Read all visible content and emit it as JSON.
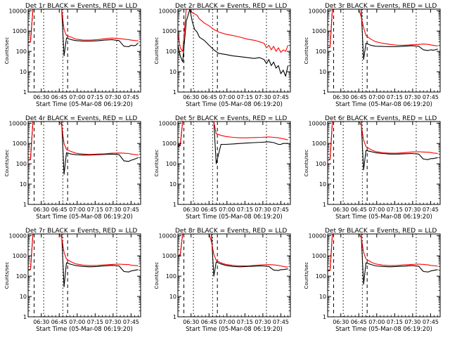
{
  "shared": {
    "ylabel": "Counts/sec",
    "xlabel": "Start Time (05-Mar-08 06:19:20)",
    "xticks": [
      "06:30",
      "06:45",
      "07:00",
      "07:15",
      "07:30",
      "07:45"
    ],
    "yticks": [
      "1",
      "10",
      "100",
      "1000",
      "10000"
    ],
    "ylim": [
      1,
      12000
    ],
    "xlim_minutes_after_0619": [
      0,
      94
    ],
    "scale": "log",
    "grid": "off",
    "events_color": "#000000",
    "lld_color": "#ff0000"
  },
  "chart_data": [
    {
      "type": "line",
      "title": "Det 1r BLACK = Events, RED = LLD",
      "x": [
        0,
        2,
        4,
        7,
        10,
        14,
        18,
        22,
        26,
        28,
        30,
        32,
        36,
        40,
        46,
        52,
        58,
        64,
        70,
        76,
        80,
        84,
        86,
        88,
        90,
        92
      ],
      "series": [
        {
          "name": "BLACK = Events",
          "values": [
            280,
            290,
            12000,
            12000,
            12000,
            12000,
            12000,
            12000,
            12000,
            12000,
            60,
            450,
            380,
            340,
            320,
            320,
            330,
            360,
            380,
            340,
            180,
            170,
            200,
            190,
            200,
            260
          ]
        },
        {
          "name": "RED = LLD",
          "values": [
            280,
            300,
            12000,
            12000,
            12000,
            12000,
            12000,
            12000,
            12000,
            12000,
            1200,
            600,
            500,
            400,
            360,
            360,
            380,
            420,
            450,
            430,
            400,
            380,
            360,
            350,
            340,
            330
          ]
        }
      ]
    },
    {
      "type": "line",
      "title": "Det 2r BLACK = Events, RED = LLD",
      "x": [
        0,
        2,
        4,
        7,
        10,
        12,
        14,
        16,
        18,
        22,
        26,
        30,
        34,
        40,
        46,
        52,
        58,
        64,
        68,
        72,
        74,
        76,
        78,
        80,
        82,
        84,
        86,
        88,
        90,
        92
      ],
      "series": [
        {
          "name": "BLACK = Events",
          "values": [
            200,
            60,
            30,
            3000,
            12000,
            3000,
            1200,
            900,
            500,
            350,
            200,
            120,
            80,
            70,
            60,
            55,
            50,
            45,
            50,
            40,
            25,
            40,
            20,
            30,
            15,
            20,
            8,
            12,
            6,
            20
          ]
        },
        {
          "name": "RED = LLD",
          "values": [
            800,
            150,
            100,
            12000,
            12000,
            8000,
            7000,
            6000,
            4000,
            2500,
            1800,
            1200,
            900,
            700,
            600,
            500,
            400,
            350,
            300,
            250,
            150,
            200,
            120,
            180,
            100,
            150,
            90,
            120,
            100,
            200
          ]
        }
      ]
    },
    {
      "type": "line",
      "title": "Det 3r BLACK = Events, RED = LLD",
      "x": [
        0,
        2,
        4,
        7,
        10,
        14,
        18,
        22,
        26,
        28,
        30,
        32,
        36,
        40,
        46,
        52,
        58,
        64,
        70,
        76,
        80,
        84,
        86,
        88,
        90,
        92
      ],
      "series": [
        {
          "name": "BLACK = Events",
          "values": [
            150,
            160,
            12000,
            12000,
            12000,
            12000,
            12000,
            12000,
            12000,
            12000,
            40,
            250,
            200,
            180,
            175,
            170,
            170,
            180,
            190,
            180,
            120,
            110,
            120,
            115,
            120,
            130
          ]
        },
        {
          "name": "RED = LLD",
          "values": [
            150,
            170,
            12000,
            12000,
            12000,
            12000,
            12000,
            12000,
            12000,
            5000,
            1500,
            600,
            400,
            300,
            250,
            220,
            200,
            200,
            210,
            220,
            230,
            220,
            210,
            200,
            190,
            185
          ]
        }
      ]
    },
    {
      "type": "line",
      "title": "Det 4r BLACK = Events, RED = LLD",
      "x": [
        0,
        2,
        4,
        7,
        10,
        14,
        18,
        22,
        26,
        28,
        30,
        32,
        36,
        40,
        46,
        52,
        58,
        64,
        70,
        76,
        80,
        84,
        86,
        88,
        90,
        92
      ],
      "series": [
        {
          "name": "BLACK = Events",
          "values": [
            150,
            160,
            12000,
            12000,
            12000,
            12000,
            12000,
            12000,
            12000,
            12000,
            30,
            350,
            300,
            280,
            270,
            270,
            280,
            290,
            300,
            280,
            140,
            130,
            150,
            160,
            180,
            200
          ]
        },
        {
          "name": "RED = LLD",
          "values": [
            150,
            170,
            12000,
            12000,
            12000,
            12000,
            12000,
            12000,
            12000,
            8000,
            1000,
            500,
            400,
            330,
            300,
            290,
            300,
            310,
            330,
            340,
            330,
            320,
            300,
            290,
            280,
            270
          ]
        }
      ]
    },
    {
      "type": "line",
      "title": "Det 5r BLACK = Events, RED = LLD",
      "x": [
        0,
        2,
        4,
        7,
        10,
        14,
        18,
        22,
        26,
        30,
        32,
        36,
        40,
        46,
        52,
        58,
        64,
        70,
        76,
        80,
        84,
        86,
        88,
        90,
        92
      ],
      "series": [
        {
          "name": "BLACK = Events",
          "values": [
            700,
            800,
            12000,
            12000,
            12000,
            12000,
            12000,
            12000,
            12000,
            12000,
            100,
            900,
            900,
            950,
            1000,
            1050,
            1100,
            1150,
            1200,
            1100,
            900,
            900,
            1000,
            1000,
            1000
          ]
        },
        {
          "name": "RED = LLD",
          "values": [
            800,
            900,
            12000,
            12000,
            12000,
            12000,
            12000,
            12000,
            12000,
            12000,
            3000,
            2500,
            2200,
            2000,
            1900,
            1900,
            1950,
            2000,
            2100,
            2000,
            1900,
            1800,
            1700,
            1600,
            1500
          ]
        }
      ]
    },
    {
      "type": "line",
      "title": "Det 6r BLACK = Events, RED = LLD",
      "x": [
        0,
        2,
        4,
        7,
        10,
        14,
        18,
        22,
        26,
        28,
        30,
        32,
        36,
        40,
        46,
        52,
        58,
        64,
        70,
        76,
        80,
        84,
        86,
        88,
        90,
        92
      ],
      "series": [
        {
          "name": "BLACK = Events",
          "values": [
            150,
            160,
            12000,
            12000,
            12000,
            12000,
            12000,
            12000,
            12000,
            12000,
            50,
            450,
            400,
            350,
            320,
            300,
            300,
            310,
            320,
            300,
            170,
            160,
            180,
            180,
            190,
            200
          ]
        },
        {
          "name": "RED = LLD",
          "values": [
            150,
            170,
            12000,
            12000,
            12000,
            12000,
            12000,
            12000,
            12000,
            8000,
            1500,
            700,
            500,
            400,
            350,
            330,
            330,
            350,
            380,
            390,
            380,
            370,
            360,
            340,
            330,
            320
          ]
        }
      ]
    },
    {
      "type": "line",
      "title": "Det 7r BLACK = Events, RED = LLD",
      "x": [
        0,
        2,
        4,
        7,
        10,
        14,
        18,
        22,
        26,
        28,
        30,
        32,
        36,
        40,
        46,
        52,
        58,
        64,
        70,
        76,
        80,
        84,
        86,
        88,
        90,
        92
      ],
      "series": [
        {
          "name": "BLACK = Events",
          "values": [
            200,
            210,
            12000,
            12000,
            12000,
            12000,
            12000,
            12000,
            12000,
            12000,
            30,
            450,
            380,
            330,
            300,
            290,
            300,
            320,
            340,
            320,
            170,
            160,
            180,
            190,
            200,
            210
          ]
        },
        {
          "name": "RED = LLD",
          "values": [
            200,
            220,
            12000,
            12000,
            12000,
            12000,
            12000,
            12000,
            12000,
            8000,
            1500,
            700,
            500,
            400,
            350,
            330,
            340,
            360,
            380,
            390,
            380,
            370,
            350,
            340,
            330,
            320
          ]
        }
      ]
    },
    {
      "type": "line",
      "title": "Det 8r BLACK = Events, RED = LLD",
      "x": [
        0,
        2,
        4,
        7,
        10,
        14,
        18,
        22,
        26,
        28,
        30,
        32,
        36,
        40,
        46,
        52,
        58,
        64,
        70,
        76,
        80,
        84,
        86,
        88,
        90,
        92
      ],
      "series": [
        {
          "name": "BLACK = Events",
          "values": [
            1000,
            1100,
            12000,
            12000,
            12000,
            12000,
            12000,
            12000,
            12000,
            12000,
            100,
            500,
            400,
            340,
            300,
            290,
            300,
            310,
            320,
            300,
            200,
            190,
            210,
            210,
            220,
            230
          ]
        },
        {
          "name": "RED = LLD",
          "values": [
            1000,
            1200,
            12000,
            12000,
            12000,
            12000,
            12000,
            12000,
            12000,
            5000,
            1200,
            600,
            450,
            380,
            340,
            320,
            320,
            340,
            360,
            370,
            360,
            340,
            320,
            300,
            290,
            280
          ]
        }
      ]
    },
    {
      "type": "line",
      "title": "Det 9r BLACK = Events, RED = LLD",
      "x": [
        0,
        2,
        4,
        7,
        10,
        14,
        18,
        22,
        26,
        28,
        30,
        32,
        36,
        40,
        46,
        52,
        58,
        64,
        70,
        76,
        80,
        84,
        86,
        88,
        90,
        92
      ],
      "series": [
        {
          "name": "BLACK = Events",
          "values": [
            180,
            190,
            12000,
            12000,
            12000,
            12000,
            12000,
            12000,
            12000,
            12000,
            40,
            450,
            380,
            320,
            300,
            290,
            300,
            310,
            330,
            310,
            170,
            160,
            180,
            190,
            200,
            210
          ]
        },
        {
          "name": "RED = LLD",
          "values": [
            180,
            200,
            12000,
            12000,
            12000,
            12000,
            12000,
            12000,
            12000,
            8000,
            1500,
            700,
            500,
            400,
            350,
            330,
            340,
            360,
            380,
            390,
            380,
            360,
            340,
            330,
            320,
            310
          ]
        }
      ]
    }
  ]
}
